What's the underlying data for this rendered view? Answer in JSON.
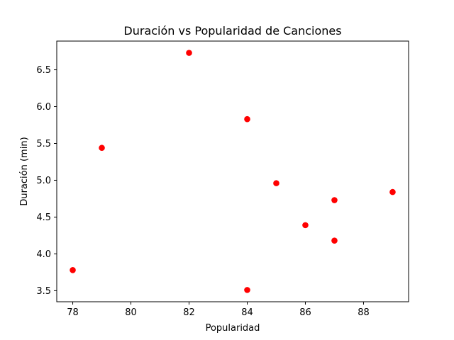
{
  "chart_data": {
    "type": "scatter",
    "title": "Duración vs Popularidad de Canciones",
    "xlabel": "Popularidad",
    "ylabel": "Duración (min)",
    "xlim": [
      77.45,
      89.55
    ],
    "ylim": [
      3.35,
      6.89
    ],
    "xticks": [
      78,
      80,
      82,
      84,
      86,
      88
    ],
    "yticks": [
      3.5,
      4.0,
      4.5,
      5.0,
      5.5,
      6.0,
      6.5
    ],
    "xtick_labels": [
      "78",
      "80",
      "82",
      "84",
      "86",
      "88"
    ],
    "ytick_labels": [
      "3.5",
      "4.0",
      "4.5",
      "5.0",
      "5.5",
      "6.0",
      "6.5"
    ],
    "grid": false,
    "legend": "none",
    "marker_color": "#ff0000",
    "points": [
      {
        "x": 78,
        "y": 3.78
      },
      {
        "x": 79,
        "y": 5.44
      },
      {
        "x": 82,
        "y": 6.73
      },
      {
        "x": 84,
        "y": 5.83
      },
      {
        "x": 84,
        "y": 3.51
      },
      {
        "x": 85,
        "y": 4.96
      },
      {
        "x": 86,
        "y": 4.39
      },
      {
        "x": 87,
        "y": 4.73
      },
      {
        "x": 87,
        "y": 4.18
      },
      {
        "x": 89,
        "y": 4.84
      }
    ]
  }
}
